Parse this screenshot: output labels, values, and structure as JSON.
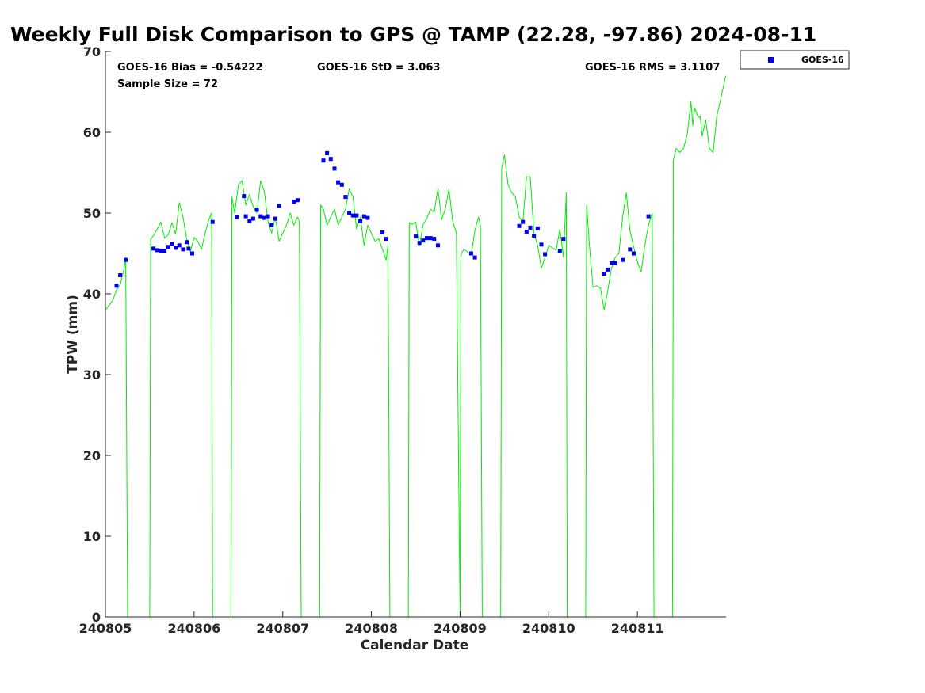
{
  "chart_data": {
    "type": "scatter",
    "title": "Weekly Full Disk Comparison to GPS @ TAMP (22.28, -97.86) 2024-08-11",
    "xlabel": "Calendar Date",
    "ylabel": "TPW (mm)",
    "xlim": [
      "2024-08-05",
      "2024-08-12"
    ],
    "ylim": [
      0,
      70
    ],
    "x_tick_labels": [
      "240805",
      "240806",
      "240807",
      "240808",
      "240809",
      "240810",
      "240811"
    ],
    "y_tick_labels": [
      "0",
      "10",
      "20",
      "30",
      "40",
      "50",
      "60",
      "70"
    ],
    "stats": {
      "bias": "GOES-16 Bias = -0.54222",
      "std": "GOES-16 StD = 3.063",
      "rms": "GOES-16 RMS = 3.1107",
      "sample": "Sample Size = 72"
    },
    "legend": {
      "placement": "top-right outside",
      "entries": [
        "GOES-16"
      ]
    },
    "colors": {
      "gps_line": "#00ee00",
      "goes_marker": "#0000ee",
      "axis": "#262626"
    },
    "grid": false,
    "series": [
      {
        "name": "GOES-16",
        "marker": "square",
        "points": [
          [
            "2024-08-05 03:00",
            41.0
          ],
          [
            "2024-08-05 04:00",
            42.3
          ],
          [
            "2024-08-05 05:30",
            44.2
          ],
          [
            "2024-08-05 13:00",
            45.6
          ],
          [
            "2024-08-05 14:00",
            45.4
          ],
          [
            "2024-08-05 15:00",
            45.3
          ],
          [
            "2024-08-05 16:00",
            45.3
          ],
          [
            "2024-08-05 17:00",
            45.8
          ],
          [
            "2024-08-05 18:00",
            46.2
          ],
          [
            "2024-08-05 19:00",
            45.7
          ],
          [
            "2024-08-05 20:00",
            46.0
          ],
          [
            "2024-08-05 21:00",
            45.5
          ],
          [
            "2024-08-05 22:00",
            46.4
          ],
          [
            "2024-08-05 22:30",
            45.6
          ],
          [
            "2024-08-05 23:30",
            45.0
          ],
          [
            "2024-08-06 05:00",
            48.9
          ],
          [
            "2024-08-06 11:30",
            49.5
          ],
          [
            "2024-08-06 13:30",
            52.1
          ],
          [
            "2024-08-06 14:00",
            49.6
          ],
          [
            "2024-08-06 15:00",
            49.0
          ],
          [
            "2024-08-06 16:00",
            49.3
          ],
          [
            "2024-08-06 17:00",
            50.4
          ],
          [
            "2024-08-06 18:00",
            49.6
          ],
          [
            "2024-08-06 19:00",
            49.4
          ],
          [
            "2024-08-06 20:00",
            49.6
          ],
          [
            "2024-08-06 21:00",
            48.5
          ],
          [
            "2024-08-06 22:00",
            49.3
          ],
          [
            "2024-08-06 23:00",
            50.9
          ],
          [
            "2024-08-07 03:00",
            51.4
          ],
          [
            "2024-08-07 04:00",
            51.6
          ],
          [
            "2024-08-07 11:00",
            56.5
          ],
          [
            "2024-08-07 12:00",
            57.4
          ],
          [
            "2024-08-07 13:00",
            56.7
          ],
          [
            "2024-08-07 14:00",
            55.5
          ],
          [
            "2024-08-07 15:00",
            53.8
          ],
          [
            "2024-08-07 16:00",
            53.5
          ],
          [
            "2024-08-07 17:00",
            52.0
          ],
          [
            "2024-08-07 18:00",
            50.0
          ],
          [
            "2024-08-07 19:00",
            49.7
          ],
          [
            "2024-08-07 20:00",
            49.7
          ],
          [
            "2024-08-07 21:00",
            49.0
          ],
          [
            "2024-08-07 22:00",
            49.6
          ],
          [
            "2024-08-07 23:00",
            49.4
          ],
          [
            "2024-08-08 03:00",
            47.6
          ],
          [
            "2024-08-08 04:00",
            46.8
          ],
          [
            "2024-08-08 12:00",
            47.1
          ],
          [
            "2024-08-08 13:00",
            46.3
          ],
          [
            "2024-08-08 14:00",
            46.6
          ],
          [
            "2024-08-08 15:00",
            46.9
          ],
          [
            "2024-08-08 16:00",
            46.9
          ],
          [
            "2024-08-08 17:00",
            46.8
          ],
          [
            "2024-08-08 18:00",
            46.0
          ],
          [
            "2024-08-09 03:00",
            45.0
          ],
          [
            "2024-08-09 04:00",
            44.5
          ],
          [
            "2024-08-09 16:00",
            48.4
          ],
          [
            "2024-08-09 17:00",
            48.9
          ],
          [
            "2024-08-09 18:00",
            47.7
          ],
          [
            "2024-08-09 19:00",
            48.2
          ],
          [
            "2024-08-09 20:00",
            47.2
          ],
          [
            "2024-08-09 21:00",
            48.1
          ],
          [
            "2024-08-09 22:00",
            46.1
          ],
          [
            "2024-08-09 23:00",
            44.9
          ],
          [
            "2024-08-10 03:00",
            45.3
          ],
          [
            "2024-08-10 04:00",
            46.8
          ],
          [
            "2024-08-10 15:00",
            42.5
          ],
          [
            "2024-08-10 16:00",
            43.0
          ],
          [
            "2024-08-10 17:00",
            43.8
          ],
          [
            "2024-08-10 18:00",
            43.8
          ],
          [
            "2024-08-10 20:00",
            44.2
          ],
          [
            "2024-08-10 22:00",
            45.5
          ],
          [
            "2024-08-10 23:00",
            45.0
          ],
          [
            "2024-08-11 03:00",
            49.6
          ]
        ]
      },
      {
        "name": "",
        "style": "line",
        "points": [
          [
            "2024-08-05 00:00",
            38.0
          ],
          [
            "2024-08-05 01:00",
            38.6
          ],
          [
            "2024-08-05 02:00",
            39.2
          ],
          [
            "2024-08-05 03:00",
            40.5
          ],
          [
            "2024-08-05 04:00",
            41.1
          ],
          [
            "2024-08-05 05:00",
            43.0
          ],
          [
            "2024-08-05 05:30",
            44.5
          ],
          [
            "2024-08-05 06:00",
            0.0
          ],
          [
            "2024-08-05 12:00",
            0.0
          ],
          [
            "2024-08-05 12:15",
            46.8
          ],
          [
            "2024-08-05 13:00",
            47.2
          ],
          [
            "2024-08-05 14:00",
            48.0
          ],
          [
            "2024-08-05 15:00",
            48.9
          ],
          [
            "2024-08-05 16:00",
            46.9
          ],
          [
            "2024-08-05 17:00",
            47.3
          ],
          [
            "2024-08-05 18:00",
            48.8
          ],
          [
            "2024-08-05 19:00",
            47.4
          ],
          [
            "2024-08-05 20:00",
            51.3
          ],
          [
            "2024-08-05 21:00",
            49.5
          ],
          [
            "2024-08-05 22:00",
            46.8
          ],
          [
            "2024-08-05 23:00",
            45.2
          ],
          [
            "2024-08-06 00:00",
            47.0
          ],
          [
            "2024-08-06 01:00",
            46.5
          ],
          [
            "2024-08-06 02:00",
            45.5
          ],
          [
            "2024-08-06 03:00",
            47.5
          ],
          [
            "2024-08-06 04:00",
            49.2
          ],
          [
            "2024-08-06 04:45",
            50.0
          ],
          [
            "2024-08-06 05:00",
            0.0
          ],
          [
            "2024-08-06 10:00",
            0.0
          ],
          [
            "2024-08-06 10:15",
            52.0
          ],
          [
            "2024-08-06 11:00",
            50.0
          ],
          [
            "2024-08-06 12:00",
            53.5
          ],
          [
            "2024-08-06 13:00",
            54.0
          ],
          [
            "2024-08-06 14:00",
            51.0
          ],
          [
            "2024-08-06 15:00",
            52.3
          ],
          [
            "2024-08-06 16:00",
            50.8
          ],
          [
            "2024-08-06 17:00",
            50.0
          ],
          [
            "2024-08-06 18:00",
            54.0
          ],
          [
            "2024-08-06 19:00",
            52.7
          ],
          [
            "2024-08-06 20:00",
            49.0
          ],
          [
            "2024-08-06 21:00",
            47.5
          ],
          [
            "2024-08-06 22:00",
            49.5
          ],
          [
            "2024-08-06 23:00",
            46.5
          ],
          [
            "2024-08-07 00:00",
            47.5
          ],
          [
            "2024-08-07 01:00",
            48.5
          ],
          [
            "2024-08-07 02:00",
            50.0
          ],
          [
            "2024-08-07 03:00",
            48.5
          ],
          [
            "2024-08-07 04:00",
            49.5
          ],
          [
            "2024-08-07 04:30",
            49.0
          ],
          [
            "2024-08-07 05:00",
            0.0
          ],
          [
            "2024-08-07 10:00",
            0.0
          ],
          [
            "2024-08-07 10:15",
            51.0
          ],
          [
            "2024-08-07 11:00",
            50.5
          ],
          [
            "2024-08-07 12:00",
            48.5
          ],
          [
            "2024-08-07 13:00",
            49.5
          ],
          [
            "2024-08-07 14:00",
            50.5
          ],
          [
            "2024-08-07 15:00",
            48.5
          ],
          [
            "2024-08-07 16:00",
            49.5
          ],
          [
            "2024-08-07 17:00",
            50.5
          ],
          [
            "2024-08-07 18:00",
            53.0
          ],
          [
            "2024-08-07 19:00",
            52.0
          ],
          [
            "2024-08-07 20:00",
            48.0
          ],
          [
            "2024-08-07 21:00",
            49.5
          ],
          [
            "2024-08-07 22:00",
            46.0
          ],
          [
            "2024-08-07 23:00",
            48.5
          ],
          [
            "2024-08-08 00:00",
            47.5
          ],
          [
            "2024-08-08 01:00",
            46.5
          ],
          [
            "2024-08-08 02:00",
            46.8
          ],
          [
            "2024-08-08 03:00",
            45.5
          ],
          [
            "2024-08-08 04:00",
            44.2
          ],
          [
            "2024-08-08 04:30",
            46.0
          ],
          [
            "2024-08-08 05:00",
            0.0
          ],
          [
            "2024-08-08 10:00",
            0.0
          ],
          [
            "2024-08-08 10:15",
            48.8
          ],
          [
            "2024-08-08 11:00",
            48.6
          ],
          [
            "2024-08-08 12:00",
            48.9
          ],
          [
            "2024-08-08 13:00",
            45.9
          ],
          [
            "2024-08-08 14:00",
            48.6
          ],
          [
            "2024-08-08 15:00",
            49.3
          ],
          [
            "2024-08-08 16:00",
            50.5
          ],
          [
            "2024-08-08 17:00",
            50.1
          ],
          [
            "2024-08-08 18:00",
            53.0
          ],
          [
            "2024-08-08 19:00",
            49.2
          ],
          [
            "2024-08-08 20:00",
            50.5
          ],
          [
            "2024-08-08 21:00",
            53.0
          ],
          [
            "2024-08-08 22:00",
            49.0
          ],
          [
            "2024-08-08 23:00",
            47.5
          ],
          [
            "2024-08-09 00:00",
            0.0
          ],
          [
            "2024-08-09 00:15",
            44.8
          ],
          [
            "2024-08-09 01:00",
            45.5
          ],
          [
            "2024-08-09 02:00",
            45.2
          ],
          [
            "2024-08-09 03:00",
            44.8
          ],
          [
            "2024-08-09 04:00",
            47.8
          ],
          [
            "2024-08-09 05:00",
            49.5
          ],
          [
            "2024-08-09 05:30",
            48.5
          ],
          [
            "2024-08-09 06:00",
            0.0
          ],
          [
            "2024-08-09 11:00",
            0.0
          ],
          [
            "2024-08-09 11:15",
            55.5
          ],
          [
            "2024-08-09 12:00",
            57.2
          ],
          [
            "2024-08-09 13:00",
            53.5
          ],
          [
            "2024-08-09 14:00",
            52.5
          ],
          [
            "2024-08-09 15:00",
            52.0
          ],
          [
            "2024-08-09 16:00",
            49.5
          ],
          [
            "2024-08-09 17:00",
            49.0
          ],
          [
            "2024-08-09 18:00",
            54.5
          ],
          [
            "2024-08-09 19:00",
            54.5
          ],
          [
            "2024-08-09 20:00",
            47.5
          ],
          [
            "2024-08-09 21:00",
            46.0
          ],
          [
            "2024-08-09 22:00",
            43.2
          ],
          [
            "2024-08-09 23:00",
            44.5
          ],
          [
            "2024-08-10 00:00",
            46.0
          ],
          [
            "2024-08-10 01:00",
            45.7
          ],
          [
            "2024-08-10 02:00",
            45.4
          ],
          [
            "2024-08-10 03:00",
            48.0
          ],
          [
            "2024-08-10 04:00",
            44.5
          ],
          [
            "2024-08-10 04:45",
            52.5
          ],
          [
            "2024-08-10 05:00",
            0.0
          ],
          [
            "2024-08-10 10:00",
            0.0
          ],
          [
            "2024-08-10 10:15",
            51.0
          ],
          [
            "2024-08-10 11:00",
            46.0
          ],
          [
            "2024-08-10 12:00",
            40.8
          ],
          [
            "2024-08-10 13:00",
            41.0
          ],
          [
            "2024-08-10 14:00",
            40.7
          ],
          [
            "2024-08-10 15:00",
            38.0
          ],
          [
            "2024-08-10 16:00",
            40.5
          ],
          [
            "2024-08-10 17:00",
            43.2
          ],
          [
            "2024-08-10 18:00",
            44.5
          ],
          [
            "2024-08-10 19:00",
            45.0
          ],
          [
            "2024-08-10 20:00",
            49.5
          ],
          [
            "2024-08-10 21:00",
            52.5
          ],
          [
            "2024-08-10 22:00",
            47.8
          ],
          [
            "2024-08-10 23:00",
            45.8
          ],
          [
            "2024-08-11 00:00",
            44.0
          ],
          [
            "2024-08-11 01:00",
            42.7
          ],
          [
            "2024-08-11 02:00",
            46.0
          ],
          [
            "2024-08-11 03:00",
            48.5
          ],
          [
            "2024-08-11 04:00",
            50.0
          ],
          [
            "2024-08-11 04:30",
            0.0
          ],
          [
            "2024-08-11 09:30",
            0.0
          ],
          [
            "2024-08-11 09:45",
            56.5
          ],
          [
            "2024-08-11 10:30",
            58.0
          ],
          [
            "2024-08-11 11:30",
            57.5
          ],
          [
            "2024-08-11 12:30",
            58.0
          ],
          [
            "2024-08-11 13:30",
            59.8
          ],
          [
            "2024-08-11 14:30",
            63.8
          ],
          [
            "2024-08-11 15:00",
            60.8
          ],
          [
            "2024-08-11 15:30",
            63.0
          ],
          [
            "2024-08-11 16:30",
            61.8
          ],
          [
            "2024-08-11 17:00",
            62.0
          ],
          [
            "2024-08-11 17:30",
            59.5
          ],
          [
            "2024-08-11 18:30",
            61.5
          ],
          [
            "2024-08-11 19:30",
            58.0
          ],
          [
            "2024-08-11 20:30",
            57.5
          ],
          [
            "2024-08-11 21:30",
            62.0
          ],
          [
            "2024-08-11 22:30",
            64.0
          ],
          [
            "2024-08-11 23:55",
            67.0
          ]
        ]
      }
    ]
  }
}
